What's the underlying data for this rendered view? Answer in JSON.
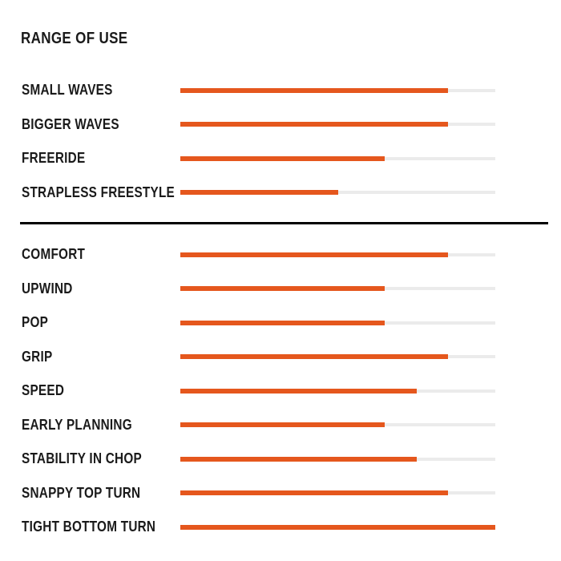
{
  "title": "RANGE OF USE",
  "colors": {
    "bar_fill": "#E5571D",
    "bar_track": "#EBEBEB",
    "text": "#1A1A1A",
    "divider": "#000000",
    "background": "#FFFFFF"
  },
  "chart_data": {
    "type": "bar",
    "orientation": "horizontal",
    "title": "RANGE OF USE",
    "value_range": [
      0,
      100
    ],
    "units": "percent_of_track",
    "grid": false,
    "legend": "none",
    "groups": [
      {
        "name": "range-of-use",
        "items": [
          {
            "label": "SMALL WAVES",
            "value": 85
          },
          {
            "label": "BIGGER WAVES",
            "value": 85
          },
          {
            "label": "FREERIDE",
            "value": 65
          },
          {
            "label": "STRAPLESS FREESTYLE",
            "value": 50
          }
        ]
      },
      {
        "name": "performance",
        "items": [
          {
            "label": "COMFORT",
            "value": 85
          },
          {
            "label": "UPWIND",
            "value": 65
          },
          {
            "label": "POP",
            "value": 65
          },
          {
            "label": "GRIP",
            "value": 85
          },
          {
            "label": "SPEED",
            "value": 75
          },
          {
            "label": "EARLY PLANNING",
            "value": 65
          },
          {
            "label": "STABILITY IN CHOP",
            "value": 75
          },
          {
            "label": "SNAPPY TOP TURN",
            "value": 85
          },
          {
            "label": "TIGHT BOTTOM TURN",
            "value": 100
          }
        ]
      }
    ]
  }
}
